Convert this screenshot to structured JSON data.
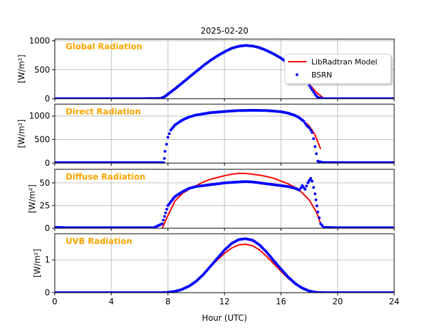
{
  "figure": {
    "title": "2025-02-20",
    "xlabel": "Hour (UTC)"
  },
  "chart_data": [
    {
      "type": "line",
      "panel_label": "Global Radiation",
      "ylabel": "[W/m²]",
      "xlim": [
        0,
        24
      ],
      "ylim": [
        0,
        1030
      ],
      "xticks": [
        0,
        4,
        8,
        12,
        16,
        20,
        24
      ],
      "yticks": [
        0,
        500,
        1000
      ],
      "grid": true,
      "legend": {
        "placement": "right",
        "entries": [
          "LibRadtran Model",
          "BSRN"
        ]
      },
      "series": [
        {
          "name": "LibRadtran Model",
          "style": "line",
          "color": "#ff0000",
          "x": [
            7.6,
            8.0,
            8.5,
            9,
            9.5,
            10,
            10.5,
            11,
            11.5,
            12,
            12.5,
            13,
            13.5,
            14,
            14.5,
            15,
            15.5,
            16,
            16.5,
            17,
            17.5,
            18,
            18.5,
            19
          ],
          "y": [
            0,
            60,
            160,
            260,
            360,
            460,
            560,
            650,
            730,
            800,
            860,
            900,
            915,
            905,
            870,
            820,
            760,
            690,
            600,
            500,
            380,
            250,
            110,
            10
          ]
        },
        {
          "name": "BSRN",
          "style": "markers",
          "color": "#0000ff",
          "x": [
            0,
            2,
            4,
            6,
            7.5,
            7.8,
            8.0,
            8.5,
            9,
            9.5,
            10,
            10.5,
            11,
            11.5,
            12,
            12.5,
            13,
            13.5,
            14,
            14.5,
            15,
            15.5,
            16,
            16.5,
            17,
            17.5,
            17.8,
            18.0,
            18.2,
            18.4,
            18.6,
            19,
            20,
            22,
            24
          ],
          "y": [
            0,
            0,
            0,
            0,
            5,
            40,
            80,
            170,
            270,
            370,
            470,
            570,
            660,
            740,
            810,
            870,
            905,
            920,
            910,
            880,
            830,
            770,
            700,
            610,
            510,
            420,
            330,
            230,
            150,
            80,
            20,
            0,
            0,
            0,
            0
          ]
        }
      ]
    },
    {
      "type": "line",
      "panel_label": "Direct Radiation",
      "ylabel": "[W/m²]",
      "xlim": [
        0,
        24
      ],
      "ylim": [
        0,
        1250
      ],
      "yticks": [
        0,
        500,
        1000
      ],
      "grid": true,
      "series": [
        {
          "name": "LibRadtran Model",
          "style": "line",
          "color": "#ff0000",
          "x": [
            17.8,
            18.0,
            18.2,
            18.4,
            18.6,
            18.8
          ],
          "y": [
            850,
            780,
            700,
            600,
            450,
            300
          ]
        },
        {
          "name": "BSRN",
          "style": "markers",
          "color": "#0000ff",
          "x": [
            0,
            2,
            4,
            6,
            7.7,
            7.75,
            7.8,
            7.9,
            8.0,
            8.2,
            8.5,
            9,
            9.5,
            10,
            11,
            12,
            13,
            14,
            15,
            16,
            16.5,
            17,
            17.3,
            17.6,
            17.8,
            18.0,
            18.2,
            18.3,
            18.4,
            18.5,
            18.6,
            19,
            20,
            22,
            24
          ],
          "y": [
            10,
            10,
            10,
            10,
            10,
            100,
            250,
            400,
            550,
            700,
            810,
            910,
            980,
            1020,
            1070,
            1095,
            1115,
            1120,
            1115,
            1090,
            1060,
            1010,
            960,
            890,
            800,
            750,
            650,
            520,
            350,
            200,
            40,
            10,
            10,
            10,
            10
          ]
        }
      ]
    },
    {
      "type": "line",
      "panel_label": "Diffuse Radiation",
      "ylabel": "[W/m²]",
      "xlim": [
        0,
        24
      ],
      "ylim": [
        0,
        65
      ],
      "yticks": [
        0,
        25,
        50
      ],
      "grid": true,
      "series": [
        {
          "name": "LibRadtran Model",
          "style": "line",
          "color": "#ff0000",
          "x": [
            7.6,
            8.0,
            8.5,
            9,
            9.5,
            10,
            10.5,
            11,
            11.5,
            12,
            12.5,
            13,
            13.5,
            14,
            14.5,
            15,
            15.5,
            16,
            16.5,
            17,
            17.5,
            18,
            18.5,
            18.8
          ],
          "y": [
            0,
            14,
            30,
            38,
            43,
            47,
            51,
            54,
            56,
            58,
            59.5,
            60.5,
            60.5,
            59.5,
            58.5,
            57,
            55,
            52,
            49,
            45,
            39,
            31,
            18,
            5
          ]
        },
        {
          "name": "BSRN",
          "style": "markers",
          "color": "#0000ff",
          "x": [
            0,
            1,
            2,
            4,
            6,
            7.0,
            7.6,
            8.0,
            8.5,
            9,
            9.5,
            10,
            11,
            12,
            13,
            13.5,
            14,
            15,
            16,
            16.5,
            17,
            17.3,
            17.5,
            17.7,
            17.9,
            18.1,
            18.2,
            18.4,
            18.6,
            18.8,
            19,
            20,
            22,
            24
          ],
          "y": [
            1,
            0.5,
            0.5,
            0.5,
            0.5,
            0.5,
            5,
            25,
            35,
            40,
            44,
            46,
            48,
            50,
            51,
            51.5,
            51,
            49,
            47,
            46,
            44,
            42,
            47,
            43,
            50,
            55,
            52,
            38,
            18,
            5,
            1,
            0.5,
            0.5,
            0.5
          ]
        }
      ]
    },
    {
      "type": "line",
      "panel_label": "UVB Radiation",
      "ylabel": "[W/m²]",
      "xlim": [
        0,
        24
      ],
      "ylim": [
        0,
        1.8
      ],
      "yticks": [
        0,
        1
      ],
      "grid": true,
      "series": [
        {
          "name": "LibRadtran Model",
          "style": "line",
          "color": "#ff0000",
          "x": [
            7.5,
            8,
            8.5,
            9,
            9.5,
            10,
            10.5,
            11,
            11.5,
            12,
            12.5,
            13,
            13.5,
            14,
            14.5,
            15,
            15.5,
            16,
            16.5,
            17,
            17.5,
            18,
            18.5,
            19
          ],
          "y": [
            0,
            0.01,
            0.04,
            0.1,
            0.2,
            0.35,
            0.55,
            0.78,
            1.0,
            1.2,
            1.36,
            1.46,
            1.48,
            1.43,
            1.3,
            1.1,
            0.88,
            0.65,
            0.44,
            0.26,
            0.13,
            0.05,
            0.015,
            0
          ]
        },
        {
          "name": "BSRN",
          "style": "markers",
          "color": "#0000ff",
          "x": [
            0,
            2,
            4,
            6,
            7,
            7.5,
            8,
            8.5,
            9,
            9.5,
            10,
            10.5,
            11,
            11.5,
            12,
            12.5,
            13,
            13.5,
            14,
            14.5,
            15,
            15.5,
            16,
            16.5,
            17,
            17.5,
            18,
            18.5,
            19,
            20,
            22,
            24
          ],
          "y": [
            0,
            0,
            0,
            0,
            0,
            0,
            0.01,
            0.04,
            0.1,
            0.2,
            0.35,
            0.55,
            0.8,
            1.05,
            1.3,
            1.5,
            1.62,
            1.65,
            1.6,
            1.45,
            1.23,
            0.97,
            0.72,
            0.48,
            0.28,
            0.14,
            0.05,
            0.01,
            0,
            0,
            0,
            0
          ]
        }
      ]
    }
  ]
}
